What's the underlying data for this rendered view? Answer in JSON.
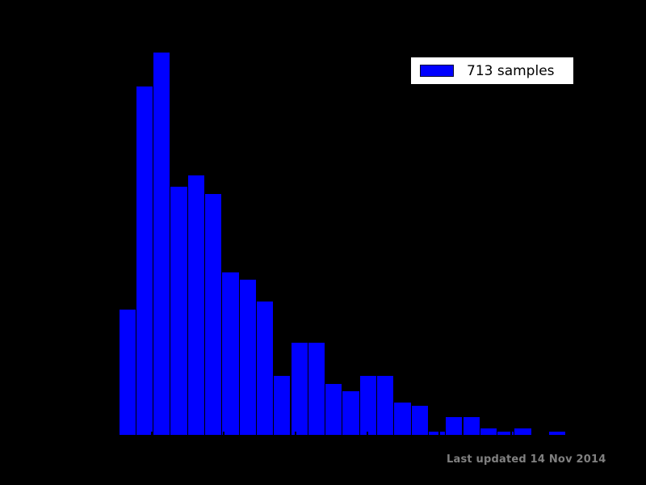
{
  "chart_data": {
    "type": "histogram",
    "title": "",
    "xlabel": "",
    "ylabel": "",
    "bin_count": 26,
    "values": [
      34,
      94,
      103,
      67,
      70,
      65,
      44,
      42,
      36,
      16,
      25,
      25,
      14,
      12,
      16,
      16,
      9,
      8,
      1,
      5,
      5,
      2,
      1,
      2,
      0,
      1
    ],
    "total_samples": 713,
    "series_label": "713 samples",
    "legend_position": "upper right",
    "grid": false,
    "bar_color": "#0000ff",
    "bar_edge_color": "#000000",
    "background_color": "#000000"
  },
  "legend": {
    "label": "713 samples",
    "swatch_color": "#0000ff"
  },
  "footer": {
    "last_updated": "Last updated 14 Nov 2014",
    "color": "#808080"
  }
}
